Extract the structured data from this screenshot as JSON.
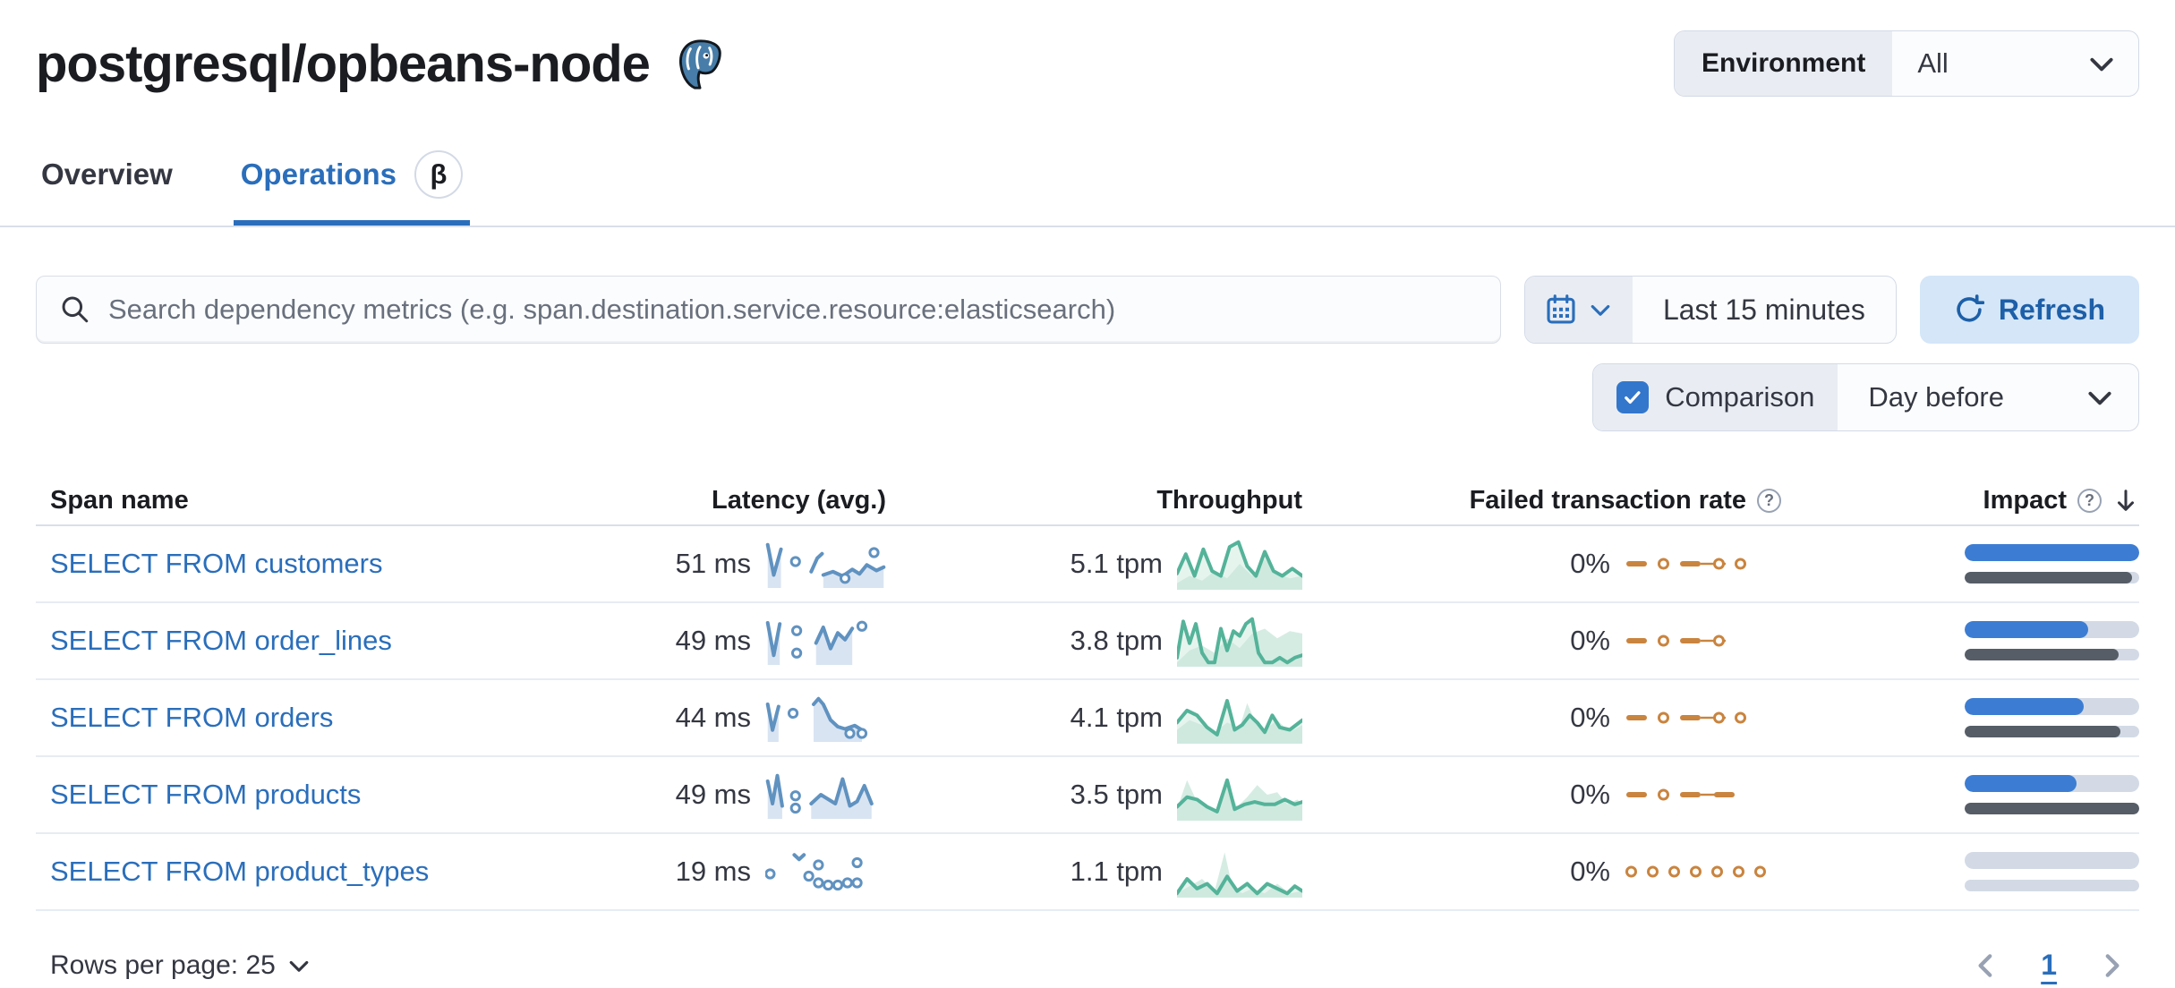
{
  "page": {
    "title": "postgresql/opbeans-node"
  },
  "header": {
    "environment_label": "Environment",
    "environment_value": "All"
  },
  "tabs": [
    {
      "label": "Overview",
      "active": false
    },
    {
      "label": "Operations",
      "active": true,
      "badge": "β"
    }
  ],
  "toolbar": {
    "search_placeholder": "Search dependency metrics (e.g. span.destination.service.resource:elasticsearch)",
    "time_range": "Last 15 minutes",
    "refresh_label": "Refresh",
    "comparison_label": "Comparison",
    "comparison_checked": true,
    "comparison_value": "Day before"
  },
  "table": {
    "columns": [
      {
        "label": "Span name"
      },
      {
        "label": "Latency (avg.)"
      },
      {
        "label": "Throughput"
      },
      {
        "label": "Failed transaction rate",
        "help": true
      },
      {
        "label": "Impact",
        "help": true,
        "sorted": "desc"
      }
    ],
    "rows": [
      {
        "span": "SELECT FROM customers",
        "latency": "51 ms",
        "throughput": "5.1 tpm",
        "failed_rate": "0%",
        "impact": {
          "current": 100,
          "previous": 96
        },
        "latency_spark": {
          "segments": [
            [
              [
                2,
                3
              ],
              [
                7,
                30
              ],
              [
                13,
                7
              ]
            ],
            [
              [
                38,
                27
              ],
              [
                43,
                15
              ],
              [
                47,
                11
              ]
            ],
            [
              [
                48,
                30
              ],
              [
                56,
                27
              ],
              [
                64,
                31
              ],
              [
                72,
                25
              ],
              [
                78,
                29
              ],
              [
                84,
                21
              ],
              [
                92,
                26
              ],
              [
                98,
                23
              ]
            ]
          ],
          "fills": [
            0,
            2
          ],
          "dots": [
            [
              25,
              18
            ],
            [
              66,
              33
            ],
            [
              90,
              10
            ]
          ]
        },
        "throughput_spark": {
          "current": [
            [
              0,
              28
            ],
            [
              7,
              12
            ],
            [
              14,
              30
            ],
            [
              21,
              8
            ],
            [
              28,
              26
            ],
            [
              35,
              30
            ],
            [
              42,
              6
            ],
            [
              49,
              2
            ],
            [
              56,
              22
            ],
            [
              63,
              30
            ],
            [
              70,
              10
            ],
            [
              77,
              26
            ],
            [
              84,
              30
            ],
            [
              92,
              24
            ],
            [
              100,
              30
            ]
          ],
          "comparison": [
            [
              0,
              36
            ],
            [
              10,
              30
            ],
            [
              20,
              34
            ],
            [
              30,
              26
            ],
            [
              40,
              32
            ],
            [
              50,
              20
            ],
            [
              60,
              30
            ],
            [
              70,
              16
            ],
            [
              80,
              28
            ],
            [
              90,
              32
            ],
            [
              100,
              30
            ]
          ]
        },
        "failed_pattern": [
          "dash",
          "dot",
          "dash",
          "line",
          "dot",
          "dot"
        ]
      },
      {
        "span": "SELECT FROM order_lines",
        "latency": "49 ms",
        "throughput": "3.8 tpm",
        "failed_rate": "0%",
        "impact": {
          "current": 71,
          "previous": 88
        },
        "latency_spark": {
          "segments": [
            [
              [
                2,
                4
              ],
              [
                7,
                33
              ],
              [
                12,
                5
              ]
            ],
            [
              [
                42,
                22
              ],
              [
                48,
                8
              ],
              [
                54,
                27
              ],
              [
                60,
                13
              ],
              [
                66,
                19
              ],
              [
                72,
                9
              ]
            ]
          ],
          "fills": [
            0,
            1
          ],
          "dots": [
            [
              26,
              11
            ],
            [
              26,
              31
            ],
            [
              80,
              7
            ]
          ]
        },
        "throughput_spark": {
          "current": [
            [
              0,
              34
            ],
            [
              5,
              4
            ],
            [
              10,
              22
            ],
            [
              15,
              6
            ],
            [
              20,
              30
            ],
            [
              25,
              38
            ],
            [
              30,
              38
            ],
            [
              35,
              10
            ],
            [
              40,
              28
            ],
            [
              45,
              12
            ],
            [
              50,
              16
            ],
            [
              55,
              6
            ],
            [
              60,
              2
            ],
            [
              65,
              30
            ],
            [
              70,
              38
            ],
            [
              76,
              38
            ],
            [
              82,
              34
            ],
            [
              88,
              38
            ],
            [
              94,
              34
            ],
            [
              100,
              32
            ]
          ],
          "comparison": [
            [
              0,
              38
            ],
            [
              10,
              28
            ],
            [
              20,
              24
            ],
            [
              30,
              30
            ],
            [
              40,
              18
            ],
            [
              50,
              26
            ],
            [
              60,
              14
            ],
            [
              70,
              10
            ],
            [
              80,
              18
            ],
            [
              90,
              12
            ],
            [
              100,
              14
            ]
          ]
        },
        "failed_pattern": [
          "dash",
          "dot",
          "dash",
          "line",
          "dot"
        ]
      },
      {
        "span": "SELECT FROM orders",
        "latency": "44 ms",
        "throughput": "4.1 tpm",
        "failed_rate": "0%",
        "impact": {
          "current": 68,
          "previous": 89
        },
        "latency_spark": {
          "segments": [
            [
              [
                2,
                8
              ],
              [
                6,
                31
              ],
              [
                11,
                10
              ]
            ],
            [
              [
                40,
                8
              ],
              [
                44,
                3
              ],
              [
                48,
                8
              ],
              [
                54,
                22
              ],
              [
                60,
                28
              ],
              [
                66,
                30
              ],
              [
                74,
                27
              ],
              [
                80,
                31
              ]
            ]
          ],
          "fills": [
            0,
            1
          ],
          "dots": [
            [
              23,
              16
            ],
            [
              70,
              34
            ],
            [
              80,
              34
            ]
          ]
        },
        "throughput_spark": {
          "current": [
            [
              0,
              24
            ],
            [
              8,
              14
            ],
            [
              16,
              18
            ],
            [
              24,
              28
            ],
            [
              32,
              34
            ],
            [
              40,
              6
            ],
            [
              46,
              30
            ],
            [
              52,
              26
            ],
            [
              58,
              18
            ],
            [
              64,
              24
            ],
            [
              70,
              32
            ],
            [
              76,
              18
            ],
            [
              82,
              28
            ],
            [
              90,
              30
            ],
            [
              100,
              22
            ]
          ],
          "comparison": [
            [
              0,
              30
            ],
            [
              10,
              22
            ],
            [
              20,
              26
            ],
            [
              30,
              32
            ],
            [
              40,
              24
            ],
            [
              50,
              28
            ],
            [
              56,
              8
            ],
            [
              62,
              22
            ],
            [
              70,
              30
            ],
            [
              80,
              22
            ],
            [
              90,
              32
            ],
            [
              100,
              26
            ]
          ]
        },
        "failed_pattern": [
          "dash",
          "dot",
          "dash",
          "line",
          "dot",
          "dot"
        ]
      },
      {
        "span": "SELECT FROM products",
        "latency": "49 ms",
        "throughput": "3.5 tpm",
        "failed_rate": "0%",
        "impact": {
          "current": 64,
          "previous": 100
        },
        "latency_spark": {
          "segments": [
            [
              [
                2,
                8
              ],
              [
                6,
                28
              ],
              [
                10,
                3
              ],
              [
                14,
                30
              ]
            ],
            [
              [
                38,
                28
              ],
              [
                46,
                20
              ],
              [
                52,
                24
              ],
              [
                58,
                28
              ],
              [
                64,
                6
              ],
              [
                70,
                30
              ],
              [
                76,
                26
              ],
              [
                82,
                12
              ],
              [
                88,
                28
              ]
            ]
          ],
          "fills": [
            0,
            1
          ],
          "dots": [
            [
              25,
              21
            ],
            [
              25,
              32
            ]
          ]
        },
        "throughput_spark": {
          "current": [
            [
              0,
              30
            ],
            [
              8,
              22
            ],
            [
              16,
              24
            ],
            [
              24,
              30
            ],
            [
              32,
              34
            ],
            [
              40,
              8
            ],
            [
              46,
              32
            ],
            [
              54,
              28
            ],
            [
              62,
              26
            ],
            [
              70,
              28
            ],
            [
              78,
              28
            ],
            [
              86,
              24
            ],
            [
              94,
              28
            ],
            [
              100,
              26
            ]
          ],
          "comparison": [
            [
              0,
              32
            ],
            [
              8,
              8
            ],
            [
              16,
              26
            ],
            [
              24,
              30
            ],
            [
              32,
              34
            ],
            [
              40,
              10
            ],
            [
              48,
              30
            ],
            [
              56,
              22
            ],
            [
              64,
              12
            ],
            [
              72,
              20
            ],
            [
              80,
              18
            ],
            [
              88,
              28
            ],
            [
              96,
              24
            ],
            [
              100,
              28
            ]
          ]
        },
        "failed_pattern": [
          "dash",
          "dot",
          "dash",
          "line",
          "dash"
        ]
      },
      {
        "span": "SELECT FROM product_types",
        "latency": "19 ms",
        "throughput": "1.1 tpm",
        "failed_rate": "0%",
        "impact": {
          "current": 0,
          "previous": 0
        },
        "latency_spark": {
          "segments": [
            [
              [
                24,
                5
              ],
              [
                28,
                9
              ],
              [
                32,
                5
              ]
            ]
          ],
          "fills": [],
          "dots": [
            [
              4,
              22
            ],
            [
              36,
              24
            ],
            [
              44,
              14
            ],
            [
              44,
              30
            ],
            [
              52,
              32
            ],
            [
              60,
              32
            ],
            [
              68,
              30
            ],
            [
              76,
              12
            ],
            [
              76,
              30
            ]
          ]
        },
        "throughput_spark": {
          "current": [
            [
              0,
              38
            ],
            [
              8,
              26
            ],
            [
              16,
              34
            ],
            [
              24,
              30
            ],
            [
              32,
              38
            ],
            [
              40,
              24
            ],
            [
              48,
              36
            ],
            [
              56,
              30
            ],
            [
              64,
              38
            ],
            [
              72,
              30
            ],
            [
              80,
              34
            ],
            [
              88,
              38
            ],
            [
              94,
              32
            ],
            [
              100,
              36
            ]
          ],
          "comparison": [
            [
              0,
              38
            ],
            [
              10,
              32
            ],
            [
              20,
              26
            ],
            [
              30,
              36
            ],
            [
              38,
              4
            ],
            [
              44,
              32
            ],
            [
              52,
              38
            ],
            [
              60,
              34
            ],
            [
              70,
              38
            ],
            [
              80,
              30
            ],
            [
              90,
              38
            ],
            [
              100,
              36
            ]
          ]
        },
        "failed_pattern": [
          "dot",
          "dot",
          "dot",
          "dot",
          "dot",
          "dot",
          "dot"
        ]
      }
    ]
  },
  "footer": {
    "rows_per_page_label": "Rows per page: 25",
    "page_number": "1"
  },
  "colors": {
    "link": "#2a6ebb",
    "impact_current": "#3c7dd3",
    "impact_previous": "#565d66",
    "latency_spark": "#6092c0",
    "latency_fill": "#d9e4f2",
    "throughput_spark": "#54b399",
    "throughput_fill": "#c7e6d9",
    "failed_spark": "#c9843f",
    "track": "#d3dae6"
  }
}
